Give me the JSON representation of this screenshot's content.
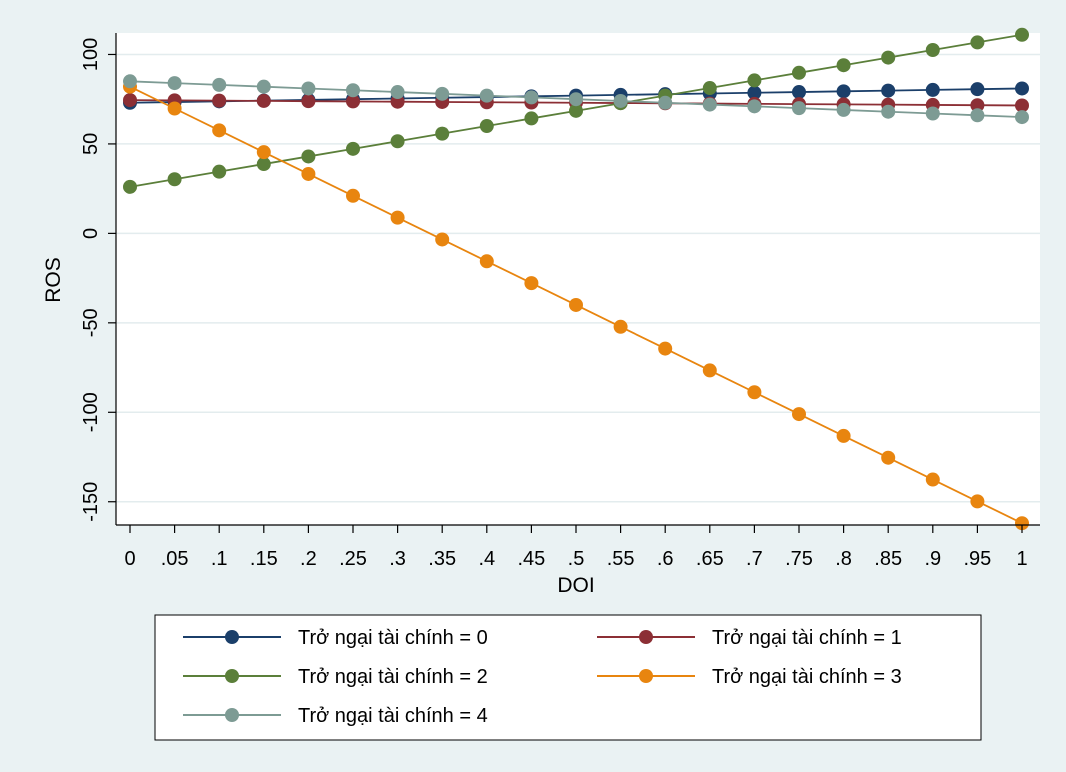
{
  "chart_data": {
    "type": "line",
    "title": "",
    "xlabel": "DOI",
    "ylabel": "ROS",
    "x": [
      0,
      0.05,
      0.1,
      0.15,
      0.2,
      0.25,
      0.3,
      0.35,
      0.4,
      0.45,
      0.5,
      0.55,
      0.6,
      0.65,
      0.7,
      0.75,
      0.8,
      0.85,
      0.9,
      0.95,
      1
    ],
    "x_tick_labels": [
      "0",
      ".05",
      ".1",
      ".15",
      ".2",
      ".25",
      ".3",
      ".35",
      ".4",
      ".45",
      ".5",
      ".55",
      ".6",
      ".65",
      ".7",
      ".75",
      ".8",
      ".85",
      ".9",
      ".95",
      "1"
    ],
    "y_ticks": [
      100,
      50,
      0,
      -50,
      -100,
      -150
    ],
    "y_tick_labels": [
      "100",
      "50",
      "0",
      "-50",
      "-100",
      "-150"
    ],
    "xlim": [
      0,
      1
    ],
    "ylim": [
      -163,
      112
    ],
    "grid": "horizontal",
    "legend_position": "bottom",
    "series": [
      {
        "name": "Trở ngại tài chính = 0",
        "color": "#1b3f6a",
        "values": [
          73,
          73.4,
          73.8,
          74.2,
          74.6,
          75,
          75.4,
          75.8,
          76.2,
          76.6,
          77,
          77.4,
          77.8,
          78.2,
          78.6,
          79,
          79.4,
          79.8,
          80.2,
          80.6,
          81
        ]
      },
      {
        "name": "Trở ngại tài chính = 1",
        "color": "#8c2f35",
        "values": [
          74.5,
          74.35,
          74.2,
          74.05,
          73.9,
          73.75,
          73.6,
          73.45,
          73.3,
          73.15,
          73,
          72.85,
          72.7,
          72.55,
          72.4,
          72.25,
          72.1,
          71.95,
          71.8,
          71.65,
          71.5
        ]
      },
      {
        "name": "Trở ngại tài chính = 2",
        "color": "#5b7f3a",
        "values": [
          26,
          30.25,
          34.5,
          38.75,
          43,
          47.25,
          51.5,
          55.75,
          60,
          64.25,
          68.5,
          72.75,
          77,
          81.25,
          85.5,
          89.75,
          94,
          98.25,
          102.5,
          106.75,
          111
        ]
      },
      {
        "name": "Trở ngại tài chính = 3",
        "color": "#e8850f",
        "values": [
          82,
          69.8,
          57.6,
          45.4,
          33.2,
          21,
          8.8,
          -3.4,
          -15.6,
          -27.8,
          -40,
          -52.2,
          -64.4,
          -76.6,
          -88.8,
          -101,
          -113.2,
          -125.4,
          -137.6,
          -149.8,
          -162
        ]
      },
      {
        "name": "Trở ngại tài chính = 4",
        "color": "#7d9b94",
        "values": [
          85,
          84,
          83,
          82,
          81,
          80,
          79,
          78,
          77,
          76,
          75,
          74,
          73,
          72,
          71,
          70,
          69,
          68,
          67,
          66,
          65
        ]
      }
    ]
  }
}
